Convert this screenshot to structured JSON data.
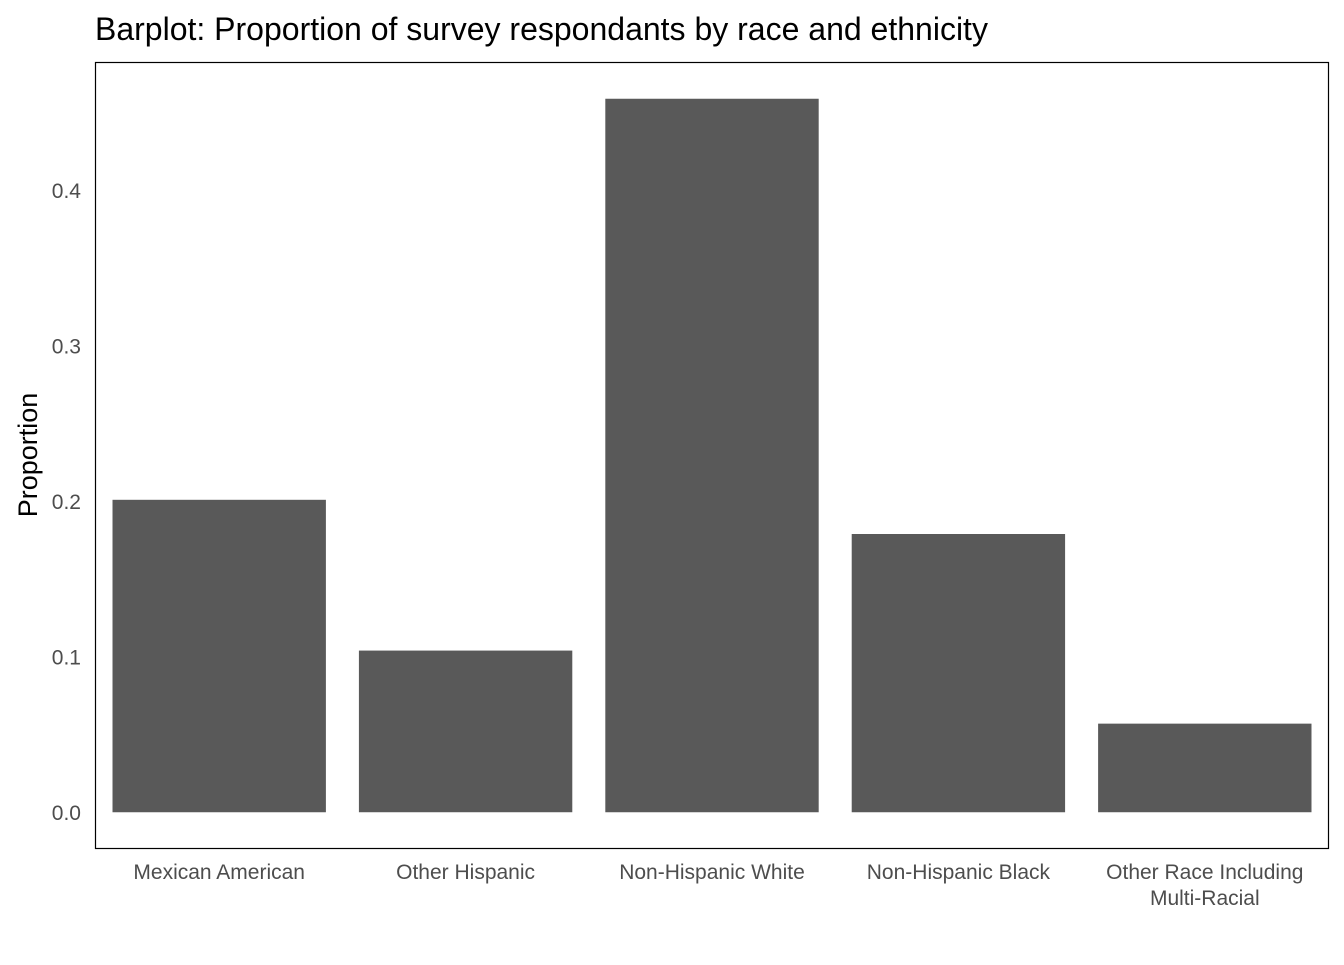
{
  "chart_data": {
    "type": "bar",
    "title": "Barplot: Proportion of survey respondants by race and ethnicity",
    "xlabel": "",
    "ylabel": "Proportion",
    "categories": [
      [
        "Mexican American"
      ],
      [
        "Other Hispanic"
      ],
      [
        "Non-Hispanic White"
      ],
      [
        "Non-Hispanic Black"
      ],
      [
        "Other Race Including",
        "Multi-Racial"
      ]
    ],
    "values": [
      0.201,
      0.104,
      0.459,
      0.179,
      0.057
    ],
    "yticks": [
      0.0,
      0.1,
      0.2,
      0.3,
      0.4
    ],
    "ytick_labels": [
      "0.0",
      "0.1",
      "0.2",
      "0.3",
      "0.4"
    ],
    "ylim": [
      -0.023,
      0.482
    ],
    "grid": false,
    "bar_color": "#595959",
    "panel_border_color": "#000000"
  }
}
